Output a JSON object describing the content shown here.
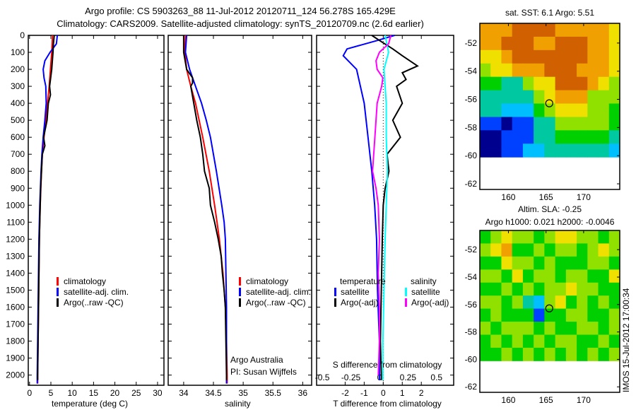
{
  "title_lines": [
    "Argo profile: CS 5903263_88 11-Jul-2012 20120711_124 56.278S 165.429E",
    "Climatology: CARS2009. Satellite-adjusted climatology: synTS_20120709.nc (2.6d earlier)"
  ],
  "colors": {
    "climatology": "#ff0000",
    "satellite": "#0000ff",
    "argo": "#000000",
    "s_satellite": "#00ffff",
    "s_argo": "#ff00ff"
  },
  "stamp": "IMOS 15-Jul-2012 17:00:34",
  "chart_data": [
    {
      "type": "line",
      "id": "temperature",
      "xlabel": "temperature (deg C)",
      "ylabel": "",
      "xlim": [
        -0.3,
        31.5
      ],
      "ylim": [
        2060,
        0
      ],
      "xticks": [
        0,
        5,
        10,
        15,
        20,
        25,
        30
      ],
      "yticks": [
        0,
        100,
        200,
        300,
        400,
        500,
        600,
        700,
        800,
        900,
        1000,
        1100,
        1200,
        1300,
        1400,
        1500,
        1600,
        1700,
        1800,
        1900,
        2000
      ],
      "legend": [
        "climatology",
        "satellite-adj. clim.",
        "Argo(..raw -QC)"
      ],
      "series": [
        {
          "name": "climatology",
          "color": "#ff0000",
          "depth": [
            0,
            100,
            200,
            300,
            400,
            500,
            600,
            700,
            800,
            1000,
            1200,
            1400,
            1600,
            1800,
            2000,
            2050
          ],
          "values": [
            5.4,
            5.2,
            4.9,
            4.6,
            4.2,
            3.8,
            3.4,
            3.0,
            2.8,
            2.5,
            2.3,
            2.2,
            2.1,
            2.0,
            1.9,
            1.9
          ]
        },
        {
          "name": "satellite-adj. clim.",
          "color": "#0000ff",
          "depth": [
            0,
            50,
            100,
            150,
            200,
            250,
            300,
            400,
            500,
            600,
            700,
            800,
            1000,
            1200,
            1400,
            1600,
            1800,
            2000,
            2050
          ],
          "values": [
            6.5,
            6.3,
            4.8,
            3.6,
            3.2,
            3.4,
            3.8,
            3.9,
            3.6,
            3.2,
            2.9,
            2.7,
            2.4,
            2.2,
            2.1,
            2.0,
            1.9,
            1.8,
            1.8
          ]
        },
        {
          "name": "Argo(..raw -QC)",
          "color": "#000000",
          "depth": [
            0,
            50,
            100,
            200,
            300,
            350,
            400,
            500,
            600,
            650,
            700,
            800,
            900,
            1000,
            1200,
            1400,
            1600,
            1800,
            2000,
            2030
          ],
          "values": [
            5.8,
            5.6,
            5.5,
            5.2,
            4.7,
            4.9,
            4.4,
            4.1,
            3.3,
            3.6,
            3.0,
            2.8,
            2.6,
            2.5,
            2.3,
            2.2,
            2.1,
            2.0,
            1.9,
            1.9
          ]
        }
      ]
    },
    {
      "type": "line",
      "id": "salinity",
      "xlabel": "salinity",
      "xlim": [
        33.74,
        36.15
      ],
      "ylim": [
        2060,
        0
      ],
      "xticks": [
        34,
        34.5,
        35,
        35.5,
        36
      ],
      "yticks": [
        0,
        100,
        200,
        300,
        400,
        500,
        600,
        700,
        800,
        900,
        1000,
        1100,
        1200,
        1300,
        1400,
        1500,
        1600,
        1700,
        1800,
        1900,
        2000
      ],
      "legend": [
        "climatology",
        "satellite-adj. clim.",
        "Argo(..raw -QC)"
      ],
      "annotations": [
        "Argo Australia",
        "PI: Susan Wijffels"
      ],
      "series": [
        {
          "name": "climatology",
          "color": "#ff0000",
          "depth": [
            0,
            100,
            200,
            300,
            400,
            600,
            800,
            1000,
            1100,
            1200,
            1400,
            1600,
            1800,
            2000,
            2050
          ],
          "values": [
            34.03,
            34.02,
            34.05,
            34.12,
            34.2,
            34.32,
            34.43,
            34.52,
            34.56,
            34.6,
            34.66,
            34.7,
            34.72,
            34.73,
            34.73
          ]
        },
        {
          "name": "satellite-adj. clim.",
          "color": "#0000ff",
          "depth": [
            0,
            100,
            200,
            300,
            400,
            500,
            600,
            800,
            1000,
            1100,
            1200,
            1400,
            1600,
            1800,
            2000,
            2050
          ],
          "values": [
            34.05,
            34.03,
            34.1,
            34.2,
            34.3,
            34.38,
            34.45,
            34.55,
            34.64,
            34.68,
            34.7,
            34.71,
            34.72,
            34.72,
            34.72,
            34.72
          ]
        },
        {
          "name": "Argo(..raw -QC)",
          "color": "#000000",
          "depth": [
            0,
            100,
            200,
            250,
            280,
            300,
            400,
            500,
            600,
            700,
            800,
            900,
            1000,
            1100,
            1200,
            1300,
            1400,
            1500,
            1600,
            1800,
            2000,
            2030
          ],
          "values": [
            34.0,
            34.0,
            34.05,
            34.15,
            34.15,
            34.12,
            34.17,
            34.22,
            34.28,
            34.32,
            34.35,
            34.43,
            34.45,
            34.52,
            34.58,
            34.63,
            34.65,
            34.68,
            34.7,
            34.71,
            34.72,
            34.72
          ]
        }
      ]
    },
    {
      "type": "line",
      "id": "difference",
      "xlabel": "T difference from climatology",
      "x2label": "S difference from climatology",
      "xlim": [
        -3.5,
        3.7
      ],
      "x2lim": [
        -0.55,
        0.65
      ],
      "ylim": [
        2060,
        0
      ],
      "xticks": [
        -2,
        -1,
        0,
        1,
        2
      ],
      "x2ticks": [
        "-0.5",
        "-0.25",
        "0",
        "0.25",
        "0.5"
      ],
      "legend": {
        "temperature_title": "temperature",
        "salinity_title": "salinity",
        "items": [
          "satellite",
          "Argo(-adj)",
          "satellite",
          "Argo(-adj)"
        ]
      },
      "series": [
        {
          "name": "T satellite",
          "axis": "T",
          "color": "#0000ff",
          "depth": [
            0,
            30,
            80,
            120,
            200,
            300,
            400,
            600,
            800,
            1000,
            1200,
            1500,
            1800,
            2000,
            2030
          ],
          "values": [
            0.6,
            -0.3,
            -1.9,
            -2.1,
            -1.4,
            -1.2,
            -1.0,
            -0.8,
            -0.6,
            -0.45,
            -0.35,
            -0.3,
            -0.2,
            -0.2,
            -0.2
          ]
        },
        {
          "name": "T Argo(-adj)",
          "axis": "T",
          "color": "#000000",
          "depth": [
            0,
            30,
            80,
            120,
            180,
            220,
            260,
            300,
            400,
            500,
            600,
            700,
            800,
            900,
            1000,
            1200,
            1500,
            1800,
            2000,
            2030
          ],
          "values": [
            -0.6,
            -0.2,
            0.5,
            1.0,
            1.8,
            1.0,
            1.2,
            0.7,
            1.0,
            0.5,
            0.9,
            0.2,
            0.3,
            0.1,
            0.0,
            -0.05,
            -0.1,
            -0.15,
            -0.1,
            -0.1
          ]
        },
        {
          "name": "S satellite",
          "axis": "S",
          "color": "#00ffff",
          "depth": [
            0,
            100,
            200,
            400,
            600,
            800,
            1000,
            1200,
            1500,
            1800,
            2000,
            2030
          ],
          "values": [
            0.05,
            0.08,
            0.04,
            0.06,
            0.06,
            0.07,
            0.06,
            0.05,
            0.04,
            0.03,
            0.03,
            0.03
          ]
        },
        {
          "name": "S Argo(-adj)",
          "axis": "S",
          "color": "#ff00ff",
          "depth": [
            0,
            50,
            100,
            150,
            200,
            250,
            300,
            400,
            600,
            800,
            900,
            1000,
            1200,
            1400,
            1600,
            1800,
            2000
          ],
          "values": [
            0.1,
            0.08,
            0.0,
            -0.03,
            -0.02,
            0.03,
            0.02,
            -0.02,
            -0.04,
            -0.06,
            -0.03,
            -0.01,
            0.0,
            -0.01,
            0.0,
            0.0,
            -0.01
          ]
        }
      ]
    },
    {
      "type": "heatmap",
      "id": "sst-map",
      "title": "sat. SST: 6.1 Argo: 5.51",
      "xticks": [
        160,
        165,
        170
      ],
      "yticks": [
        -52,
        -54,
        -56,
        -58,
        -60,
        -62
      ],
      "xlim": [
        156.2,
        174.8
      ],
      "ylim": [
        -62.4,
        -50.6
      ],
      "argo_position": [
        165.43,
        -56.28
      ],
      "grid_rows_north_to_south": [
        "7778888777776",
        "7788877888776",
        "6678888888776",
        "5667778887776",
        "4433566888765",
        "3333356777555",
        "3322245666554",
        "1101133555554",
        "0011133444443",
        "0011223333332"
      ]
    },
    {
      "type": "heatmap",
      "id": "sla-map",
      "title": "Altim. SLA: -0.25",
      "subtitle": "Argo h1000: 0.021 h2000: -0.0046",
      "xticks": [
        160,
        165,
        170
      ],
      "yticks": [
        -52,
        -54,
        -56,
        -58,
        -60,
        -62
      ],
      "xlim": [
        156.2,
        174.8
      ],
      "ylim": [
        -62.4,
        -50.6
      ],
      "argo_position": [
        165.43,
        -56.28
      ],
      "grid_rows_north_to_south": [
        "4565545665545",
        "5674454554565",
        "4465545444554",
        "5546455455446",
        "4454545565544",
        "5545325645454",
        "4544414455445",
        "5455545445545",
        "4545454554454",
        "4454545454545"
      ]
    }
  ]
}
